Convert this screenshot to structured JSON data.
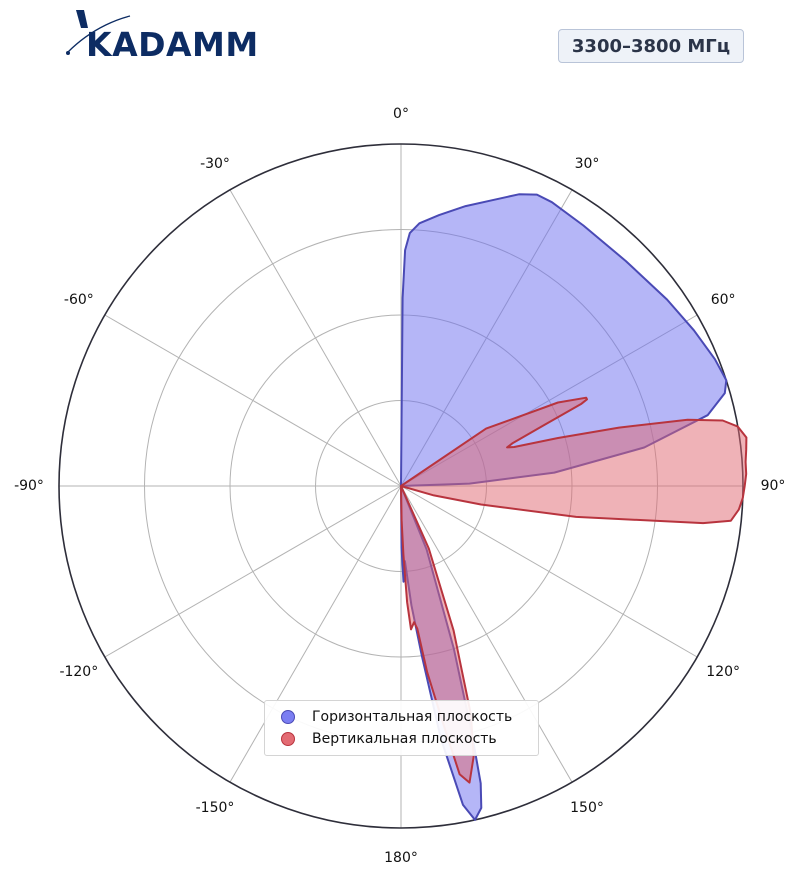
{
  "header": {
    "logo_text": "KADAMM",
    "frequency_badge": "3300–3800 МГц"
  },
  "colors": {
    "horizontal": "#6b6ef0",
    "horizontal_edge": "#4a4ab5",
    "vertical": "#e06570",
    "vertical_edge": "#b8343e",
    "brand": "#0d2c63"
  },
  "chart_data": {
    "type": "polar_area",
    "theta_zero": "top",
    "theta_direction": "clockwise",
    "angular_ticks": [
      {
        "angle": 0,
        "label": "0°"
      },
      {
        "angle": 30,
        "label": "30°"
      },
      {
        "angle": 60,
        "label": "60°"
      },
      {
        "angle": 90,
        "label": "90°"
      },
      {
        "angle": 120,
        "label": "120°"
      },
      {
        "angle": 150,
        "label": "150°"
      },
      {
        "angle": 180,
        "label": "180°"
      },
      {
        "angle": 210,
        "label": "-150°"
      },
      {
        "angle": 240,
        "label": "-120°"
      },
      {
        "angle": 270,
        "label": "-90°"
      },
      {
        "angle": 300,
        "label": "-60°"
      },
      {
        "angle": 330,
        "label": "-30°"
      }
    ],
    "radial_range": [
      0,
      1
    ],
    "radial_gridlines": [
      0.25,
      0.5,
      0.75,
      1.0
    ],
    "radial_tick_labels": false,
    "grid": true,
    "legend_position": "bottom-center",
    "series": [
      {
        "name": "Горизонтальная плоскость",
        "color": "#6b6ef0",
        "edge": "#4a4ab5",
        "points": [
          [
            0,
            0
          ],
          [
            0.5,
            0.55
          ],
          [
            1,
            0.69
          ],
          [
            2,
            0.74
          ],
          [
            4,
            0.77
          ],
          [
            8,
            0.8
          ],
          [
            13,
            0.84
          ],
          [
            18,
            0.88
          ],
          [
            22,
            0.92
          ],
          [
            25,
            0.94
          ],
          [
            28,
            0.94
          ],
          [
            35,
            0.93
          ],
          [
            45,
            0.93
          ],
          [
            55,
            0.95
          ],
          [
            62,
            0.97
          ],
          [
            68,
            0.99
          ],
          [
            72,
            1.0
          ],
          [
            74,
            0.985
          ],
          [
            77,
            0.92
          ],
          [
            81,
            0.72
          ],
          [
            85,
            0.45
          ],
          [
            88,
            0.2
          ],
          [
            90,
            0
          ],
          [
            150,
            0
          ],
          [
            158,
            0.2
          ],
          [
            162,
            0.5
          ],
          [
            164,
            0.75
          ],
          [
            165,
            0.9
          ],
          [
            166,
            0.97
          ],
          [
            167.5,
            1.0
          ],
          [
            169,
            0.95
          ],
          [
            171,
            0.75
          ],
          [
            173,
            0.5
          ],
          [
            175,
            0.35
          ],
          [
            177,
            0.22
          ],
          [
            178.5,
            0.28
          ],
          [
            179.5,
            0.18
          ],
          [
            180,
            0
          ]
        ]
      },
      {
        "name": "Вертикальная плоскость",
        "color": "#e06570",
        "edge": "#b8343e",
        "points": [
          [
            0,
            0
          ],
          [
            56,
            0.3
          ],
          [
            62,
            0.52
          ],
          [
            64.5,
            0.6
          ],
          [
            65,
            0.6
          ],
          [
            65.5,
            0.58
          ],
          [
            67,
            0.45
          ],
          [
            69,
            0.35
          ],
          [
            70,
            0.33
          ],
          [
            71,
            0.35
          ],
          [
            73,
            0.48
          ],
          [
            75,
            0.66
          ],
          [
            77,
            0.86
          ],
          [
            78.5,
            0.96
          ],
          [
            80,
            1.0
          ],
          [
            82,
            1.02
          ],
          [
            84,
            1.015
          ],
          [
            86,
            1.01
          ],
          [
            88,
            1.01
          ],
          [
            90,
            1.005
          ],
          [
            92,
            1.0
          ],
          [
            94,
            0.99
          ],
          [
            96,
            0.97
          ],
          [
            97,
            0.89
          ],
          [
            100,
            0.52
          ],
          [
            103,
            0.24
          ],
          [
            106,
            0.1
          ],
          [
            110,
            0
          ],
          [
            150,
            0
          ],
          [
            156,
            0.2
          ],
          [
            160,
            0.45
          ],
          [
            163,
            0.7
          ],
          [
            165,
            0.82
          ],
          [
            167,
            0.89
          ],
          [
            168.5,
            0.86
          ],
          [
            170,
            0.7
          ],
          [
            172,
            0.55
          ],
          [
            173.5,
            0.42
          ],
          [
            174.5,
            0.4
          ],
          [
            176,
            0.42
          ],
          [
            177,
            0.34
          ],
          [
            178,
            0.2
          ],
          [
            179,
            0.1
          ],
          [
            180,
            0
          ]
        ]
      }
    ]
  }
}
